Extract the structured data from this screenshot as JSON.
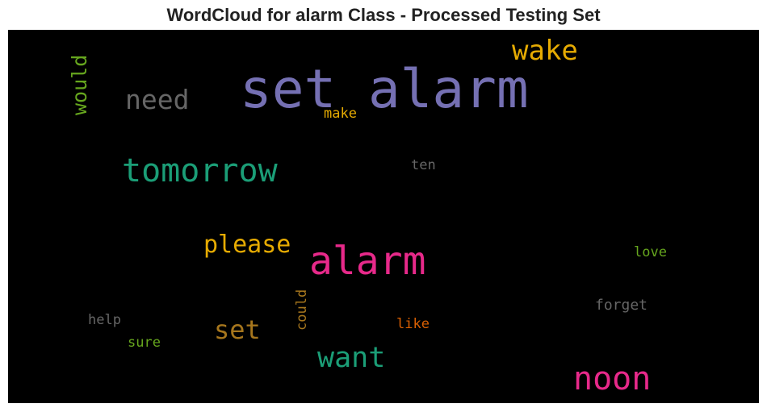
{
  "title": "WordCloud for alarm Class - Processed Testing Set",
  "background_color": "#000000",
  "words": [
    {
      "text": "set alarm",
      "color": "#7570b3",
      "orientation": "horizontal"
    },
    {
      "text": "wake",
      "color": "#e6ab02",
      "orientation": "horizontal"
    },
    {
      "text": "need",
      "color": "#666666",
      "orientation": "horizontal"
    },
    {
      "text": "would",
      "color": "#66a61e",
      "orientation": "vertical"
    },
    {
      "text": "make",
      "color": "#e6ab02",
      "orientation": "horizontal"
    },
    {
      "text": "tomorrow",
      "color": "#1b9e77",
      "orientation": "horizontal"
    },
    {
      "text": "ten",
      "color": "#666666",
      "orientation": "horizontal"
    },
    {
      "text": "please",
      "color": "#e6ab02",
      "orientation": "horizontal"
    },
    {
      "text": "alarm",
      "color": "#e7298a",
      "orientation": "horizontal"
    },
    {
      "text": "love",
      "color": "#66a61e",
      "orientation": "horizontal"
    },
    {
      "text": "could",
      "color": "#a6761d",
      "orientation": "vertical"
    },
    {
      "text": "help",
      "color": "#666666",
      "orientation": "horizontal"
    },
    {
      "text": "forget",
      "color": "#666666",
      "orientation": "horizontal"
    },
    {
      "text": "like",
      "color": "#d95f02",
      "orientation": "horizontal"
    },
    {
      "text": "set",
      "color": "#a6761d",
      "orientation": "horizontal"
    },
    {
      "text": "sure",
      "color": "#66a61e",
      "orientation": "horizontal"
    },
    {
      "text": "want",
      "color": "#1b9e77",
      "orientation": "horizontal"
    },
    {
      "text": "noon",
      "color": "#e7298a",
      "orientation": "horizontal"
    }
  ]
}
